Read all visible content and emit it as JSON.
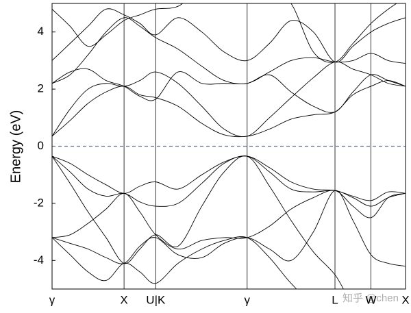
{
  "chart_data": {
    "type": "line",
    "y_label": "Energy (eV)",
    "watermark": "知乎 @chen",
    "x": [
      0,
      0.25,
      0.5,
      0.75,
      1.0,
      1.22,
      1.44,
      1.75,
      2.08,
      2.39,
      2.71,
      3.02,
      3.32,
      3.63,
      3.93,
      4.18,
      4.43,
      4.67,
      4.91
    ],
    "xlim": [
      0,
      4.91
    ],
    "xticks": [
      {
        "value": 0,
        "label": "γ"
      },
      {
        "value": 1.0,
        "label": "X"
      },
      {
        "value": 1.44,
        "label": "U|K"
      },
      {
        "value": 2.71,
        "label": "γ"
      },
      {
        "value": 3.93,
        "label": "L"
      },
      {
        "value": 4.43,
        "label": "W"
      },
      {
        "value": 4.91,
        "label": "X"
      }
    ],
    "ylim": [
      -5,
      5
    ],
    "yticks": [
      -4,
      -2,
      0,
      2,
      4
    ],
    "grid_x": true,
    "reference_line": {
      "value": 0,
      "color": "#4a72c4"
    },
    "series": [
      {
        "color": "#000000",
        "values": [
          -0.35,
          -0.6,
          -1.0,
          -1.35,
          -1.65,
          -1.4,
          -1.25,
          -1.5,
          -1.0,
          -0.55,
          -0.35,
          -0.75,
          -1.25,
          -1.5,
          -1.55,
          -1.75,
          -1.9,
          -1.6,
          -1.65
        ]
      },
      {
        "color": "#000000",
        "values": [
          -0.35,
          -0.9,
          -1.5,
          -1.75,
          -1.65,
          -1.95,
          -2.1,
          -2.0,
          -1.3,
          -0.6,
          -0.35,
          -0.9,
          -1.5,
          -1.6,
          -1.55,
          -1.8,
          -2.1,
          -1.8,
          -1.65
        ]
      },
      {
        "color": "#000000",
        "values": [
          -0.35,
          -1.3,
          -2.3,
          -3.2,
          -4.1,
          -3.6,
          -3.1,
          -3.5,
          -2.1,
          -0.9,
          -0.35,
          -1.4,
          -2.6,
          -3.7,
          -4.5,
          -5.5,
          -5.5,
          -5.5,
          -5.5
        ]
      },
      {
        "color": "#000000",
        "values": [
          -3.2,
          -3.1,
          -2.7,
          -2.2,
          -1.65,
          -2.3,
          -3.1,
          -3.6,
          -3.3,
          -3.2,
          -3.2,
          -2.8,
          -2.2,
          -1.8,
          -1.55,
          -2.1,
          -2.5,
          -1.8,
          -1.65
        ]
      },
      {
        "color": "#000000",
        "values": [
          -3.2,
          -3.4,
          -3.6,
          -3.9,
          -4.1,
          -3.5,
          -3.2,
          -3.8,
          -3.9,
          -3.4,
          -3.2,
          -3.6,
          -4.0,
          -3.0,
          -1.55,
          -2.6,
          -3.8,
          -4.1,
          -4.2
        ]
      },
      {
        "color": "#000000",
        "values": [
          -3.2,
          -3.8,
          -4.4,
          -4.7,
          -4.1,
          -4.4,
          -4.8,
          -4.1,
          -3.6,
          -3.3,
          -3.2,
          -3.9,
          -4.8,
          -5.5,
          -5.5,
          -5.5,
          -5.5,
          -5.5,
          -5.5
        ]
      },
      {
        "color": "#000000",
        "values": [
          0.35,
          0.9,
          1.5,
          1.9,
          2.1,
          1.8,
          1.7,
          1.4,
          0.8,
          0.4,
          0.35,
          0.6,
          0.95,
          1.1,
          1.2,
          1.8,
          2.1,
          2.3,
          2.1
        ]
      },
      {
        "color": "#000000",
        "values": [
          0.35,
          1.3,
          2.0,
          2.2,
          2.1,
          2.3,
          2.6,
          2.2,
          1.4,
          0.6,
          0.35,
          1.0,
          1.7,
          2.4,
          2.95,
          2.7,
          2.5,
          2.2,
          2.1
        ]
      },
      {
        "color": "#000000",
        "values": [
          2.2,
          2.6,
          2.7,
          2.3,
          2.1,
          1.75,
          1.65,
          2.6,
          2.2,
          2.2,
          2.2,
          2.5,
          1.9,
          1.4,
          1.2,
          1.9,
          2.5,
          2.3,
          2.1
        ]
      },
      {
        "color": "#000000",
        "values": [
          2.2,
          2.5,
          3.2,
          4.0,
          4.5,
          4.2,
          3.8,
          3.4,
          2.8,
          2.3,
          2.2,
          2.6,
          3.0,
          3.1,
          2.95,
          3.0,
          3.25,
          3.0,
          2.9
        ]
      },
      {
        "color": "#000000",
        "values": [
          3.0,
          3.6,
          4.2,
          4.8,
          4.6,
          4.3,
          3.9,
          4.5,
          4.0,
          3.3,
          3.0,
          3.6,
          4.4,
          4.0,
          2.95,
          3.5,
          4.0,
          4.3,
          4.5
        ]
      },
      {
        "color": "#000000",
        "values": [
          4.8,
          4.2,
          3.5,
          3.9,
          4.4,
          4.6,
          4.8,
          4.9,
          5.5,
          5.5,
          5.5,
          5.5,
          5.0,
          3.3,
          2.95,
          3.6,
          4.3,
          4.8,
          5.2
        ]
      }
    ]
  }
}
